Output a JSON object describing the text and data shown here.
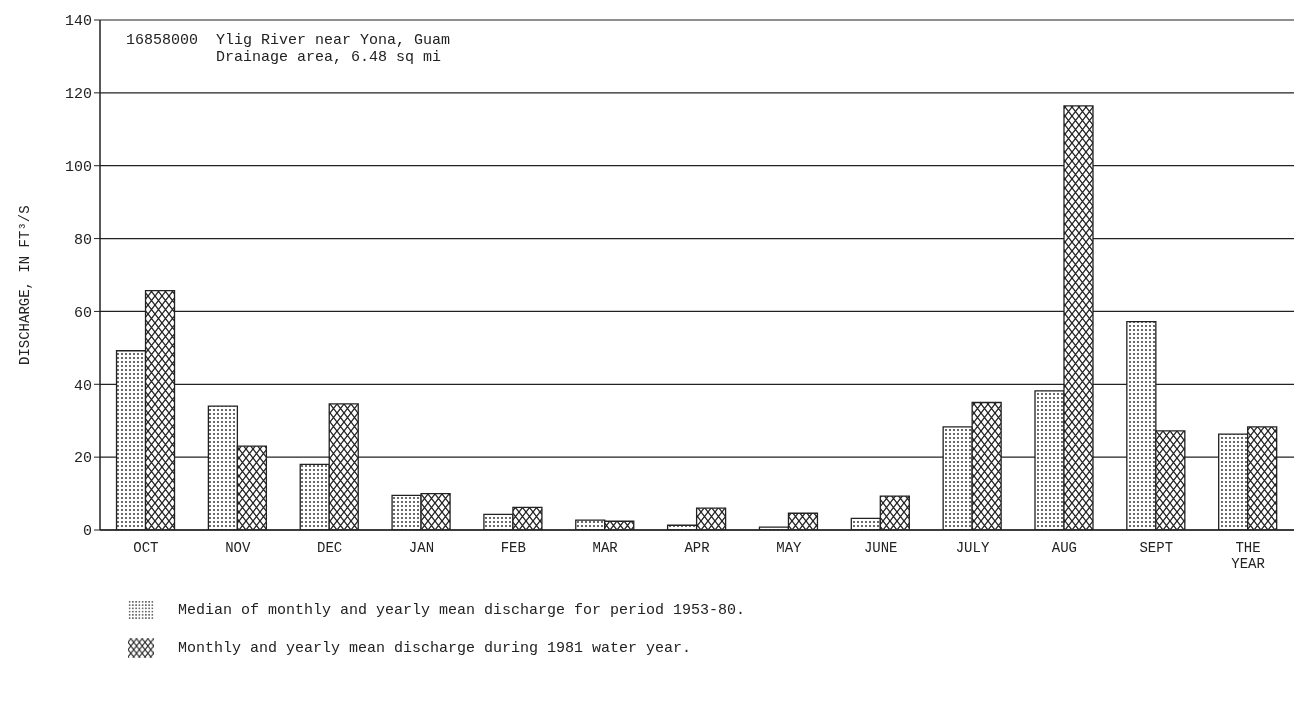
{
  "chart_data": {
    "type": "bar",
    "title": "16858000  Ylig River near Yona, Guam",
    "subtitle": "Drainage area, 6.48 sq mi",
    "ylabel": "DISCHARGE, IN FT³/S",
    "categories": [
      "OCT",
      "NOV",
      "DEC",
      "JAN",
      "FEB",
      "MAR",
      "APR",
      "MAY",
      "JUNE",
      "JULY",
      "AUG",
      "SEPT",
      "THE YEAR"
    ],
    "series": [
      {
        "name": "Median of monthly and yearly mean discharge for period 1953-80.",
        "color": "#222222",
        "values": [
          49.2,
          34,
          18,
          9.5,
          4.3,
          2.7,
          1.3,
          0.8,
          3.2,
          28.3,
          38.2,
          57.2,
          26.3
        ]
      },
      {
        "name": "Monthly and yearly mean discharge during 1981 water year.",
        "color": "#222222",
        "values": [
          65.7,
          23,
          34.6,
          10,
          6.2,
          2.4,
          6,
          4.6,
          9.3,
          35,
          116.4,
          27.2,
          28.3
        ]
      }
    ],
    "ylim": [
      0,
      140
    ],
    "yticks": [
      0,
      20,
      40,
      60,
      80,
      100,
      120,
      140
    ],
    "grid": "y",
    "legend": "bottom"
  }
}
